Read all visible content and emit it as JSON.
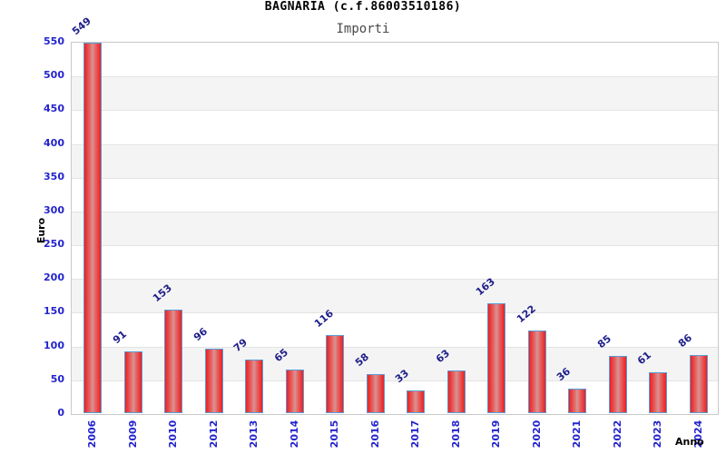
{
  "chart_data": {
    "type": "bar",
    "title": "BAGNARIA (c.f.86003510186)",
    "subtitle": "Importi",
    "xlabel": "Anno",
    "ylabel": "Euro",
    "categories": [
      "2006",
      "2009",
      "2010",
      "2012",
      "2013",
      "2014",
      "2015",
      "2016",
      "2017",
      "2018",
      "2019",
      "2020",
      "2021",
      "2022",
      "2023",
      "2024"
    ],
    "values": [
      549,
      91,
      153,
      96,
      79,
      65,
      116,
      58,
      33,
      63,
      163,
      122,
      36,
      85,
      61,
      86
    ],
    "ylim": [
      0,
      550
    ],
    "ytick_step": 50,
    "grid": "alternating-horizontal-bands",
    "legend": "none",
    "colors": {
      "bar_fill_edge": "#ea2020",
      "bar_fill_center": "#d89494",
      "bar_border": "#5b9bd5",
      "tick_label": "#2424cd",
      "value_label": "#1e1e8a",
      "band_gray": "#f4f4f4",
      "gridline": "#e3e3e3",
      "plot_border": "#c9c9c9",
      "title": "#000000",
      "subtitle": "#4a4a4a"
    }
  }
}
